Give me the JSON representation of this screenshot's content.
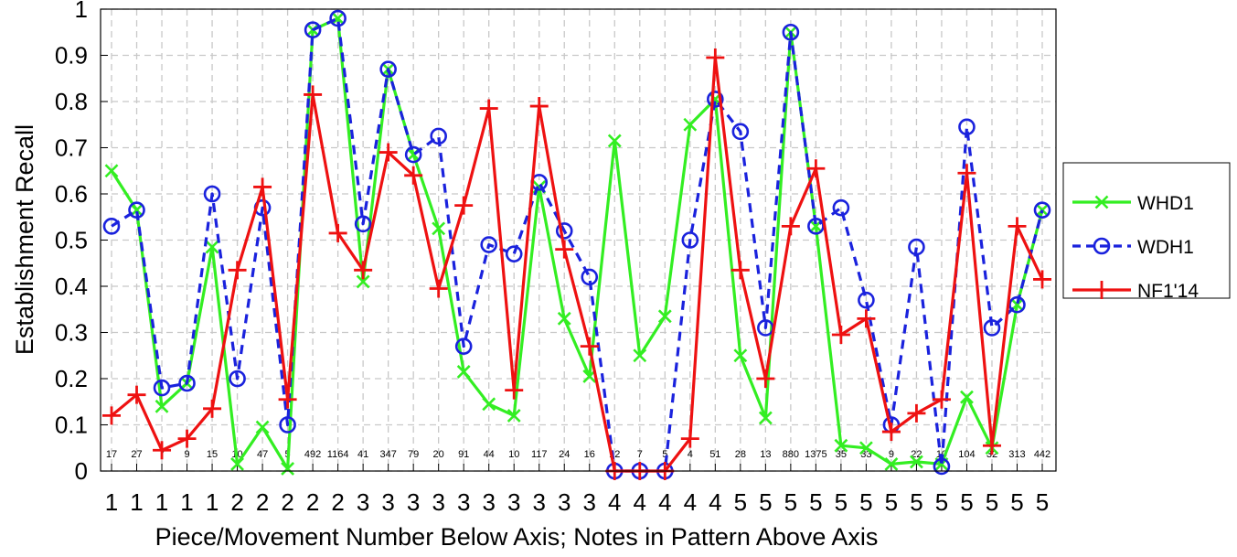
{
  "chart_data": {
    "type": "line",
    "xlabel": "Piece/Movement Number Below Axis; Notes in Pattern Above Axis",
    "ylabel": "Establishment Recall",
    "ylim": [
      0,
      1
    ],
    "yticks": [
      "0",
      "0.1",
      "0.2",
      "0.3",
      "0.4",
      "0.5",
      "0.6",
      "0.7",
      "0.8",
      "0.9",
      "1"
    ],
    "grid": true,
    "legend_position": "right",
    "piece_numbers": [
      "1",
      "1",
      "1",
      "1",
      "1",
      "2",
      "2",
      "2",
      "2",
      "2",
      "3",
      "3",
      "3",
      "3",
      "3",
      "3",
      "3",
      "3",
      "3",
      "3",
      "4",
      "4",
      "4",
      "4",
      "4",
      "5",
      "5",
      "5",
      "5",
      "5",
      "5",
      "5",
      "5",
      "5",
      "5",
      "5",
      "5",
      "5"
    ],
    "note_counts": [
      "17",
      "27",
      "7",
      "9",
      "15",
      "10",
      "47",
      "5",
      "492",
      "1164",
      "41",
      "347",
      "79",
      "20",
      "91",
      "44",
      "10",
      "117",
      "24",
      "16",
      "12",
      "7",
      "5",
      "4",
      "51",
      "28",
      "13",
      "880",
      "1375",
      "35",
      "33",
      "9",
      "22",
      "10",
      "104",
      "32",
      "313",
      "442"
    ],
    "series": [
      {
        "name": "WHD1",
        "color": "#33ee22",
        "dash": "solid",
        "marker": "x",
        "values": [
          0.65,
          0.565,
          0.14,
          0.19,
          0.485,
          0.015,
          0.095,
          0.005,
          0.955,
          0.98,
          0.41,
          0.87,
          0.685,
          0.525,
          0.215,
          0.145,
          0.12,
          0.615,
          0.33,
          0.205,
          0.715,
          0.25,
          0.335,
          0.75,
          0.805,
          0.25,
          0.115,
          0.95,
          0.53,
          0.055,
          0.05,
          0.015,
          0.02,
          0.015,
          0.16,
          0.05,
          0.36,
          0.565
        ]
      },
      {
        "name": "WDH1",
        "color": "#1a22dd",
        "dash": "dashed",
        "marker": "o",
        "values": [
          0.53,
          0.565,
          0.18,
          0.19,
          0.6,
          0.2,
          0.57,
          0.1,
          0.955,
          0.98,
          0.535,
          0.87,
          0.685,
          0.725,
          0.27,
          0.49,
          0.47,
          0.625,
          0.52,
          0.42,
          0.0,
          0.0,
          0.0,
          0.5,
          0.805,
          0.735,
          0.31,
          0.95,
          0.53,
          0.57,
          0.37,
          0.1,
          0.485,
          0.01,
          0.745,
          0.31,
          0.36,
          0.565
        ]
      },
      {
        "name": "NF1'14",
        "color": "#ee1111",
        "dash": "solid",
        "marker": "+",
        "values": [
          0.12,
          0.165,
          0.045,
          0.07,
          0.135,
          0.435,
          0.615,
          0.155,
          0.815,
          0.515,
          0.435,
          0.69,
          0.64,
          0.395,
          0.575,
          0.785,
          0.175,
          0.79,
          0.48,
          0.27,
          0.0,
          0.0,
          0.0,
          0.07,
          0.895,
          0.435,
          0.2,
          0.53,
          0.655,
          0.295,
          0.33,
          0.085,
          0.125,
          0.155,
          0.645,
          0.055,
          0.53,
          0.415
        ]
      }
    ]
  }
}
